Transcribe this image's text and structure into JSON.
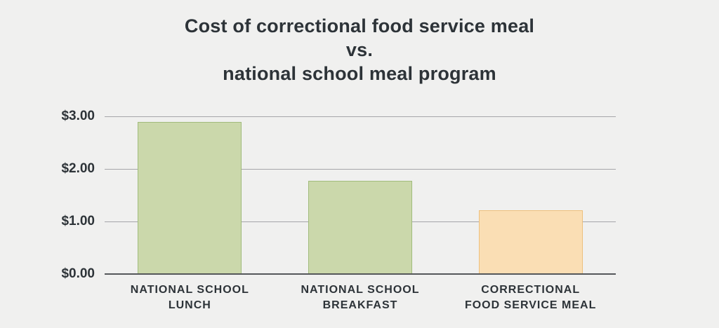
{
  "page": {
    "background_color": "#f0f0ef",
    "text_color": "#2d3338"
  },
  "chart_data": {
    "type": "bar",
    "title": "Cost of correctional food service meal vs. national school meal program",
    "title_lines": [
      "Cost of correctional food service meal",
      "vs.",
      "national school meal program"
    ],
    "categories": [
      "NATIONAL SCHOOL LUNCH",
      "NATIONAL SCHOOL BREAKFAST",
      "CORRECTIONAL FOOD SERVICE MEAL"
    ],
    "category_lines": [
      [
        "NATIONAL SCHOOL",
        "LUNCH"
      ],
      [
        "NATIONAL SCHOOL",
        "BREAKFAST"
      ],
      [
        "CORRECTIONAL",
        "FOOD SERVICE MEAL"
      ]
    ],
    "values": [
      2.9,
      1.77,
      1.22
    ],
    "xlabel": "",
    "ylabel": "",
    "ylim": [
      0,
      3
    ],
    "y_tick_values": [
      3,
      2,
      1,
      0
    ],
    "y_tick_labels": [
      "$3.00",
      "$2.00",
      "$1.00",
      "$0.00"
    ],
    "grid": true,
    "legend_position": "none",
    "bar_styles": [
      {
        "fill": "#cbd8ab",
        "border": "#a1bc7c"
      },
      {
        "fill": "#cbd8ab",
        "border": "#a1bc7c"
      },
      {
        "fill": "#fadeb4",
        "border": "#edc07d"
      }
    ],
    "gridline_color": "#a5a5a9",
    "axis_line_color": "#54575a"
  }
}
